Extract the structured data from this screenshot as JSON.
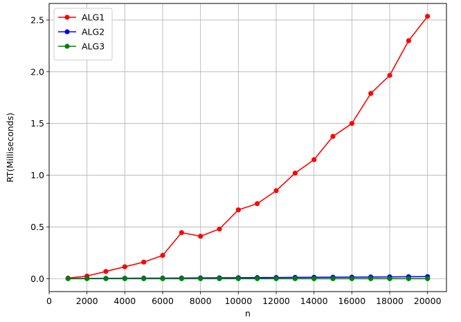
{
  "chart_data": {
    "type": "line",
    "xlabel": "n",
    "ylabel": "RT(Milliseconds)",
    "xlim": [
      0,
      21000
    ],
    "ylim": [
      -0.125,
      2.66
    ],
    "xticks": [
      0,
      2000,
      4000,
      6000,
      8000,
      10000,
      12000,
      14000,
      16000,
      18000,
      20000
    ],
    "xtick_labels": [
      "0",
      "2000",
      "4000",
      "6000",
      "8000",
      "10000",
      "12000",
      "14000",
      "16000",
      "18000",
      "20000"
    ],
    "yticks": [
      0.0,
      0.5,
      1.0,
      1.5,
      2.0,
      2.5
    ],
    "ytick_labels": [
      "0.0",
      "0.5",
      "1.0",
      "1.5",
      "2.0",
      "2.5"
    ],
    "grid": true,
    "legend_position": "top-left",
    "x": [
      1000,
      2000,
      3000,
      4000,
      5000,
      6000,
      7000,
      8000,
      9000,
      10000,
      11000,
      12000,
      13000,
      14000,
      15000,
      16000,
      17000,
      18000,
      19000,
      20000
    ],
    "series": [
      {
        "name": "ALG1",
        "color": "#ff0000",
        "marker": "circle",
        "values": [
          0.005,
          0.025,
          0.07,
          0.115,
          0.16,
          0.225,
          0.445,
          0.41,
          0.48,
          0.665,
          0.725,
          0.85,
          1.02,
          1.15,
          1.375,
          1.5,
          1.79,
          1.965,
          2.3,
          2.535
        ]
      },
      {
        "name": "ALG2",
        "color": "#0000ff",
        "marker": "circle",
        "values": [
          0.001,
          0.002,
          0.003,
          0.004,
          0.005,
          0.005,
          0.006,
          0.007,
          0.008,
          0.009,
          0.01,
          0.011,
          0.012,
          0.013,
          0.014,
          0.015,
          0.016,
          0.017,
          0.019,
          0.02
        ]
      },
      {
        "name": "ALG3",
        "color": "#008000",
        "marker": "circle",
        "values": [
          0.0,
          0.0,
          0.0,
          0.0,
          0.0,
          0.0,
          0.0,
          0.0,
          0.0,
          0.0,
          0.0,
          0.0,
          0.0,
          0.0,
          0.0,
          0.0,
          0.0,
          0.0,
          0.0,
          0.0
        ]
      }
    ]
  }
}
